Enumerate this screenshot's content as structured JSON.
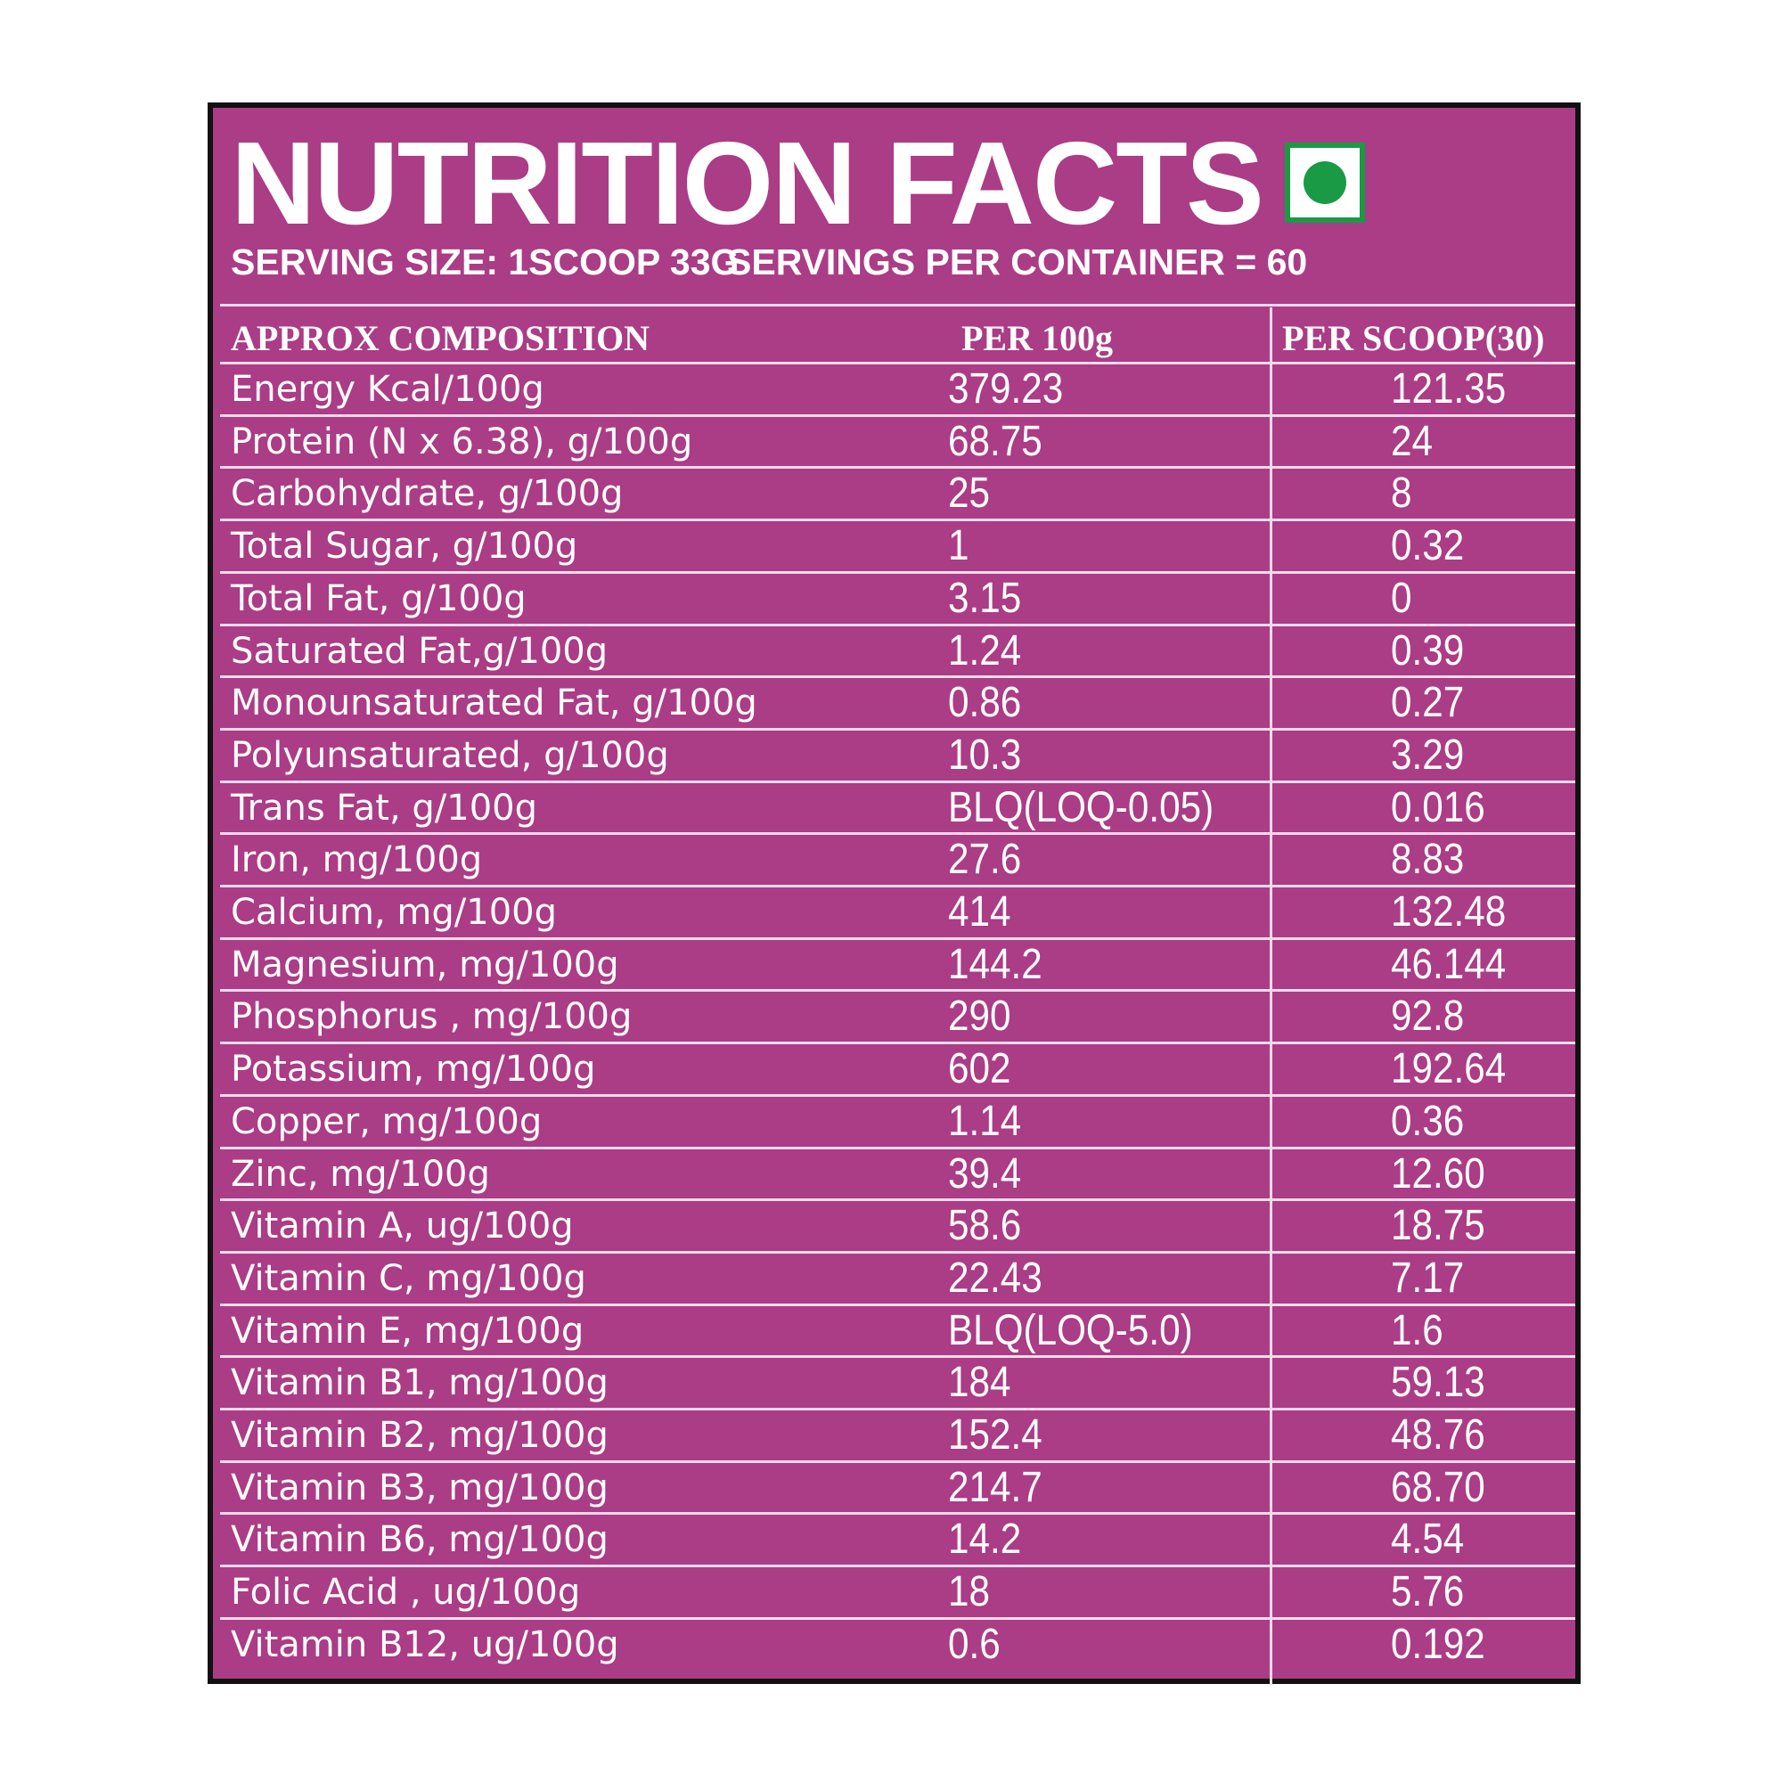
{
  "header": {
    "title": "NUTRITION FACTS",
    "serving_size": "SERVING SIZE: 1SCOOP 33G",
    "servings_per_container": "SERVINGS PER CONTAINER = 60"
  },
  "table": {
    "columns": [
      "APPROX  COMPOSITION",
      "PER 100g",
      "PER SCOOP(30)"
    ],
    "rows": [
      [
        "Energy Kcal/100g",
        "379.23",
        "121.35"
      ],
      [
        "Protein (N x 6.38), g/100g",
        "68.75",
        "24"
      ],
      [
        "Carbohydrate, g/100g",
        "25",
        "8"
      ],
      [
        "Total Sugar, g/100g",
        "1",
        "0.32"
      ],
      [
        "Total Fat, g/100g",
        "3.15",
        "0"
      ],
      [
        "Saturated Fat,g/100g",
        "1.24",
        "0.39"
      ],
      [
        "Monounsaturated Fat, g/100g",
        "0.86",
        "0.27"
      ],
      [
        "Polyunsaturated, g/100g",
        "10.3",
        "3.29"
      ],
      [
        "Trans Fat, g/100g",
        "BLQ(LOQ-0.05)",
        "0.016"
      ],
      [
        "Iron, mg/100g",
        "27.6",
        "8.83"
      ],
      [
        "Calcium, mg/100g",
        "414",
        "132.48"
      ],
      [
        "Magnesium, mg/100g",
        "144.2",
        "46.144"
      ],
      [
        "Phosphorus , mg/100g",
        "290",
        "92.8"
      ],
      [
        "Potassium, mg/100g",
        "602",
        "192.64"
      ],
      [
        "Copper, mg/100g",
        "1.14",
        "0.36"
      ],
      [
        "Zinc, mg/100g",
        "39.4",
        "12.60"
      ],
      [
        "Vitamin A, ug/100g",
        "58.6",
        "18.75"
      ],
      [
        "Vitamin C, mg/100g",
        "22.43",
        "7.17"
      ],
      [
        "Vitamin E, mg/100g",
        "BLQ(LOQ-5.0)",
        "1.6"
      ],
      [
        "Vitamin B1, mg/100g",
        "184",
        "59.13"
      ],
      [
        "Vitamin B2, mg/100g",
        "152.4",
        "48.76"
      ],
      [
        "Vitamin B3, mg/100g",
        "214.7",
        "68.70"
      ],
      [
        "Vitamin B6, mg/100g",
        "14.2",
        "4.54"
      ],
      [
        "Folic Acid , ug/100g",
        "18",
        "5.76"
      ],
      [
        "Vitamin B12, ug/100g",
        "0.6",
        "0.192"
      ]
    ]
  }
}
